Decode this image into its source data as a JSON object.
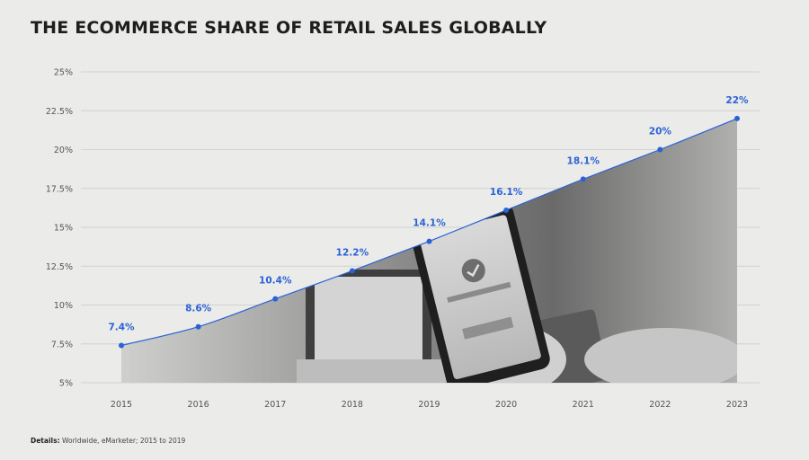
{
  "title": "THE ECOMMERCE SHARE OF RETAIL SALES GLOBALLY",
  "footnote": {
    "label": "Details:",
    "text": "Worldwide, eMarketer; 2015 to 2019"
  },
  "chart_data": {
    "type": "area",
    "title": "THE ECOMMERCE SHARE OF RETAIL SALES GLOBALLY",
    "xlabel": "",
    "ylabel": "",
    "x": [
      "2015",
      "2016",
      "2017",
      "2018",
      "2019",
      "2020",
      "2021",
      "2022",
      "2023"
    ],
    "values": [
      7.4,
      8.6,
      10.4,
      12.2,
      14.1,
      16.1,
      18.1,
      20,
      22
    ],
    "data_labels": [
      "7.4%",
      "8.6%",
      "10.4%",
      "12.2%",
      "14.1%",
      "16.1%",
      "18.1%",
      "20%",
      "22%"
    ],
    "ylim": [
      5,
      25
    ],
    "yticks": [
      5,
      7.5,
      10,
      12.5,
      15,
      17.5,
      20,
      22.5,
      25
    ],
    "ytick_labels": [
      "5%",
      "7.5%",
      "10%",
      "12.5%",
      "15%",
      "17.5%",
      "20%",
      "22.5%",
      "25%"
    ],
    "grid": true,
    "legend": "none",
    "colors": {
      "line": "#2a62d6",
      "marker": "#2a62d6",
      "label": "#2a62d6",
      "fill": "#9a9a9a",
      "grid": "#d2d2d0",
      "background": "#ebebe9"
    }
  }
}
